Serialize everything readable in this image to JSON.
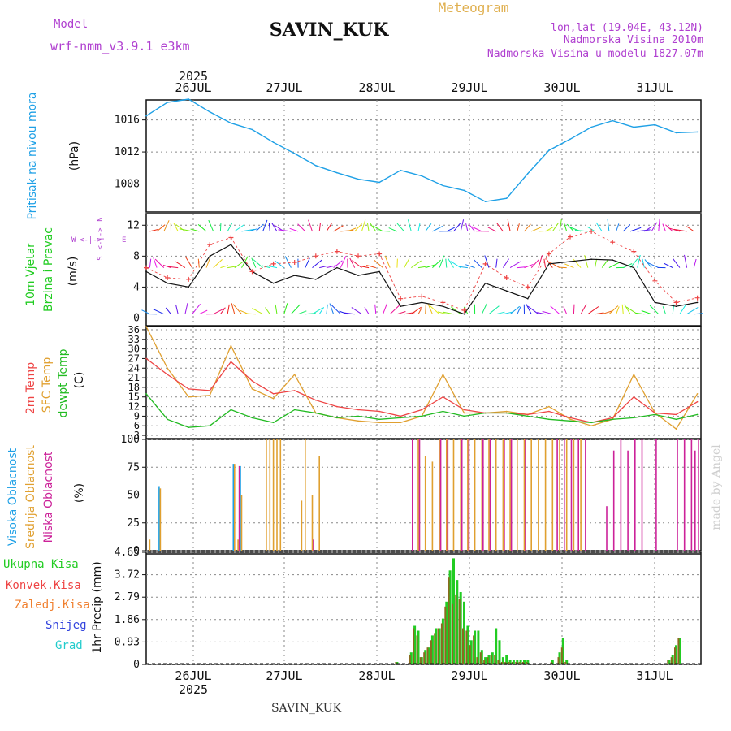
{
  "header": {
    "model_label": "Model",
    "model_name": "wrf-nmm_v3.9.1  e3km",
    "station": "SAVIN_KUK",
    "product": "Meteogram",
    "lonlat": "lon,lat (19.04E, 43.12N)",
    "elevation": "Nadmorska Visina 2010m",
    "model_elevation": "Nadmorska Visina u modelu 1827.07m"
  },
  "footer": {
    "station": "SAVIN_KUK",
    "credit": "made by Angel"
  },
  "colors": {
    "pressure": "#1ea0e6",
    "wind_label": "#22cc22",
    "wind_icon": "#b040d0",
    "temp": "#ee4444",
    "sfc": "#e0a030",
    "dewpt": "#22bb22",
    "high_cloud": "#1ea0e6",
    "mid_cloud": "#e0a030",
    "low_cloud": "#cc2299",
    "total_precip": "#22cc22",
    "conv_precip": "#ee4444",
    "frz_precip": "#f08030",
    "snow": "#3344dd",
    "hail": "#22cccc"
  },
  "axis": {
    "year": "2025",
    "days": [
      "26JUL",
      "27JUL",
      "28JUL",
      "29JUL",
      "30JUL",
      "31JUL"
    ]
  },
  "wind_icon": {
    "n": "N",
    "s": "S",
    "w": "W",
    "e": "E",
    "arrows": "<-|->"
  },
  "chart_data": [
    {
      "type": "line",
      "panel": "pressure",
      "title": "Pritisak na nivou mora",
      "ylabel": "(hPa)",
      "yticks": [
        "1016",
        "1012",
        "1008"
      ],
      "ylim": [
        1004.5,
        1018.5
      ],
      "x_hours": [
        0,
        6,
        12,
        18,
        24,
        30,
        36,
        42,
        48,
        54,
        60,
        66,
        72,
        78,
        84,
        90,
        96,
        102,
        108,
        114,
        120,
        126,
        132,
        138,
        144,
        150,
        156
      ],
      "series": [
        {
          "name": "MSLP",
          "values": [
            1016.5,
            1018.2,
            1018.6,
            1017.0,
            1015.6,
            1014.8,
            1013.2,
            1011.8,
            1010.3,
            1009.4,
            1008.6,
            1008.2,
            1009.7,
            1009.0,
            1007.8,
            1007.2,
            1005.8,
            1006.2,
            1009.3,
            1012.2,
            1013.6,
            1015.1,
            1015.9,
            1015.1,
            1015.4,
            1014.4,
            1014.5
          ]
        }
      ]
    },
    {
      "type": "line",
      "panel": "wind",
      "title": "10m Vjetar",
      "title2": "Brzina i Pravac",
      "ylabel": "(m/s)",
      "yticks": [
        "12",
        "8",
        "4",
        "0"
      ],
      "ylim": [
        -1,
        13.5
      ],
      "x_hours": [
        0,
        6,
        12,
        18,
        24,
        30,
        36,
        42,
        48,
        54,
        60,
        66,
        72,
        78,
        84,
        90,
        96,
        102,
        108,
        114,
        120,
        126,
        132,
        138,
        144,
        150,
        156
      ],
      "series": [
        {
          "name": "mean",
          "values": [
            6.0,
            4.5,
            4.0,
            8.0,
            9.5,
            6.0,
            4.5,
            5.5,
            5.0,
            6.5,
            5.5,
            6.0,
            1.5,
            2.0,
            1.5,
            0.5,
            4.5,
            3.5,
            2.5,
            7.0,
            7.3,
            7.6,
            7.5,
            6.5,
            2.0,
            1.5,
            2.0
          ]
        },
        {
          "name": "gust",
          "values": [
            6.5,
            5.2,
            5.0,
            9.5,
            10.4,
            6.0,
            7.0,
            7.2,
            8.0,
            8.6,
            8.0,
            8.3,
            2.5,
            2.8,
            2.0,
            1.0,
            7.0,
            5.2,
            4.0,
            8.3,
            10.5,
            11.2,
            9.8,
            8.6,
            4.8,
            2.0,
            2.6
          ]
        }
      ]
    },
    {
      "type": "line",
      "panel": "temperature",
      "title_a": "2m Temp",
      "title_b": "SFC Temp",
      "title_c": "dewpt Temp",
      "ylabel": "(C)",
      "yticks": [
        "36",
        "33",
        "30",
        "27",
        "24",
        "21",
        "18",
        "15",
        "12",
        "9",
        "6",
        "3"
      ],
      "ylim": [
        2,
        37
      ],
      "x_hours": [
        0,
        6,
        12,
        18,
        24,
        30,
        36,
        42,
        48,
        54,
        60,
        66,
        72,
        78,
        84,
        90,
        96,
        102,
        108,
        114,
        120,
        126,
        132,
        138,
        144,
        150,
        156
      ],
      "series": [
        {
          "name": "2m",
          "values": [
            27.0,
            22.0,
            17.5,
            17.0,
            26.0,
            20.0,
            16.0,
            17.0,
            14.0,
            12.0,
            11.0,
            10.5,
            9.0,
            11.0,
            15.0,
            11.0,
            10.0,
            10.0,
            9.5,
            10.5,
            8.5,
            7.0,
            8.5,
            15.0,
            10.0,
            9.5,
            13.5
          ]
        },
        {
          "name": "SFC",
          "values": [
            37.0,
            24.0,
            15.0,
            15.5,
            31.0,
            17.5,
            14.5,
            22.0,
            10.0,
            8.5,
            7.5,
            7.0,
            7.0,
            9.0,
            22.0,
            10.0,
            10.0,
            10.5,
            9.5,
            12.0,
            8.0,
            6.0,
            8.0,
            22.0,
            10.0,
            5.0,
            16.0
          ]
        },
        {
          "name": "dewpt",
          "values": [
            16.0,
            8.0,
            5.5,
            6.0,
            11.0,
            8.5,
            7.0,
            11.0,
            10.0,
            8.5,
            9.0,
            8.0,
            8.5,
            9.0,
            10.5,
            9.0,
            10.0,
            10.0,
            9.0,
            8.0,
            7.5,
            7.0,
            8.0,
            8.5,
            9.5,
            8.0,
            9.5
          ]
        }
      ]
    },
    {
      "type": "bar",
      "panel": "cloud",
      "title_a": "Visoka Oblacnost",
      "title_b": "Srednja Oblacnost",
      "title_c": "Niska Oblacnost",
      "ylabel": "(%)",
      "yticks": [
        "100",
        "75",
        "50",
        "25",
        "0"
      ],
      "ylim": [
        0,
        100
      ],
      "x_hours": [
        1,
        4,
        24,
        25,
        26,
        27,
        34,
        35,
        36,
        37,
        38,
        44,
        45,
        47,
        49,
        50,
        51,
        55,
        57,
        68,
        69,
        72,
        73,
        75,
        76,
        77,
        78,
        79,
        80,
        81,
        82,
        83,
        84,
        85,
        86,
        87,
        88,
        89,
        90,
        91,
        92,
        93,
        94,
        95,
        96,
        97,
        98,
        99,
        100,
        101,
        102,
        103,
        104,
        105,
        106,
        107,
        108,
        109,
        110,
        111,
        112,
        113,
        114,
        115,
        116,
        117,
        118,
        119,
        120,
        121,
        122,
        123,
        124,
        130,
        132,
        134,
        136,
        138,
        140,
        144,
        150,
        152,
        154,
        155,
        156
      ],
      "series": [
        {
          "name": "high",
          "values": [
            0,
            58,
            0,
            78,
            0,
            76,
            0,
            0,
            0,
            0,
            0,
            0,
            0,
            0,
            0,
            0,
            0,
            0,
            0,
            0,
            0,
            0,
            0,
            0,
            0,
            0,
            0,
            0,
            0,
            0,
            0,
            0,
            0,
            0,
            0,
            0,
            0,
            0,
            0,
            0,
            0,
            0,
            0,
            0,
            0,
            0,
            0,
            0,
            0,
            0,
            0,
            0,
            0,
            0,
            0,
            0,
            0,
            0,
            0,
            0,
            0,
            0,
            0,
            0,
            0,
            0,
            0,
            0,
            0,
            0,
            0,
            0,
            0,
            0,
            0,
            0,
            0,
            0,
            0,
            0,
            0,
            0,
            0,
            0,
            0
          ]
        },
        {
          "name": "mid",
          "values": [
            10,
            56,
            0,
            78,
            10,
            50,
            100,
            100,
            100,
            100,
            100,
            45,
            100,
            50,
            85,
            0,
            0,
            0,
            0,
            0,
            0,
            0,
            0,
            0,
            0,
            100,
            0,
            85,
            0,
            80,
            0,
            100,
            0,
            100,
            0,
            100,
            0,
            100,
            0,
            100,
            0,
            100,
            0,
            100,
            0,
            100,
            0,
            100,
            0,
            100,
            0,
            100,
            0,
            100,
            0,
            100,
            0,
            100,
            0,
            100,
            0,
            100,
            0,
            100,
            0,
            100,
            0,
            100,
            0,
            100,
            0,
            100,
            0,
            0,
            0,
            0,
            0,
            0,
            0,
            0,
            0,
            0,
            0,
            0,
            0
          ]
        },
        {
          "name": "low",
          "values": [
            0,
            0,
            0,
            0,
            76,
            0,
            0,
            0,
            0,
            0,
            0,
            0,
            0,
            10,
            0,
            0,
            0,
            0,
            0,
            0,
            0,
            0,
            0,
            100,
            0,
            100,
            0,
            0,
            0,
            0,
            0,
            100,
            0,
            100,
            0,
            0,
            0,
            100,
            0,
            100,
            0,
            0,
            0,
            100,
            0,
            100,
            0,
            0,
            0,
            100,
            0,
            100,
            0,
            0,
            0,
            100,
            0,
            0,
            0,
            0,
            0,
            0,
            0,
            0,
            100,
            0,
            100,
            0,
            100,
            0,
            100,
            0,
            100,
            40,
            90,
            100,
            90,
            100,
            100,
            100,
            100,
            100,
            100,
            90,
            100
          ]
        }
      ]
    },
    {
      "type": "bar",
      "panel": "precip",
      "title_a": "Ukupna  Kisa",
      "title_b": "Konvek.Kisa",
      "title_c": "Zaledj.Kisa",
      "title_d": "Snijeg",
      "title_e": "Grad",
      "ylabel": "1hr Precip (mm)",
      "yticks": [
        "4.65",
        "3.72",
        "2.79",
        "1.86",
        "0.93",
        "0"
      ],
      "ylim": [
        0,
        4.65
      ],
      "x_hours": [
        71,
        72,
        73,
        74,
        75,
        76,
        77,
        78,
        79,
        80,
        81,
        82,
        83,
        84,
        85,
        86,
        87,
        88,
        89,
        90,
        91,
        92,
        93,
        94,
        95,
        96,
        97,
        98,
        99,
        100,
        101,
        102,
        103,
        104,
        105,
        106,
        107,
        108,
        109,
        110,
        111,
        112,
        113,
        114,
        115,
        116,
        117,
        118,
        119,
        120,
        121,
        122,
        123,
        124,
        125,
        126,
        127,
        128,
        129,
        130,
        131,
        132,
        133,
        134,
        135,
        136,
        137,
        138,
        139,
        140,
        141,
        142,
        143,
        144,
        145,
        146,
        147,
        148,
        149,
        150,
        151,
        152,
        153,
        154,
        155,
        156
      ],
      "series": [
        {
          "name": "total",
          "values": [
            0.1,
            0,
            0,
            0,
            0.5,
            1.6,
            1.4,
            0.3,
            0.6,
            0.7,
            1.2,
            1.5,
            1.5,
            1.9,
            2.6,
            3.9,
            4.4,
            3.5,
            3.0,
            2.6,
            1.6,
            1.0,
            1.4,
            1.4,
            0.6,
            0.3,
            0.4,
            0.5,
            1.5,
            1.0,
            0.3,
            0.4,
            0.2,
            0.2,
            0.2,
            0.2,
            0.2,
            0.2,
            0,
            0,
            0,
            0,
            0,
            0,
            0.2,
            0,
            0.5,
            1.1,
            0.2,
            0,
            0,
            0,
            0,
            0,
            0,
            0,
            0,
            0,
            0,
            0,
            0,
            0,
            0,
            0,
            0,
            0,
            0,
            0,
            0,
            0,
            0,
            0,
            0,
            0,
            0,
            0,
            0,
            0.2,
            0.4,
            0.8,
            1.1,
            0,
            0,
            0,
            0,
            0
          ]
        },
        {
          "name": "conv",
          "values": [
            0.1,
            0,
            0,
            0,
            0.4,
            1.5,
            1.2,
            0.3,
            0.5,
            0.7,
            1.0,
            1.3,
            1.5,
            1.7,
            2.4,
            3.6,
            2.5,
            2.9,
            2.7,
            1.5,
            1.4,
            0.8,
            1.2,
            0.3,
            0.5,
            0.2,
            0.3,
            0.4,
            0.4,
            0.2,
            0.1,
            0.1,
            0.1,
            0.1,
            0.1,
            0.1,
            0.1,
            0.1,
            0,
            0,
            0,
            0,
            0,
            0,
            0.1,
            0,
            0.3,
            0.7,
            0.1,
            0,
            0,
            0,
            0,
            0,
            0,
            0,
            0,
            0,
            0,
            0,
            0,
            0,
            0,
            0,
            0,
            0,
            0,
            0,
            0,
            0,
            0,
            0,
            0,
            0,
            0,
            0,
            0,
            0.2,
            0.3,
            0.7,
            1.1,
            0,
            0,
            0,
            0,
            0
          ]
        }
      ]
    }
  ]
}
